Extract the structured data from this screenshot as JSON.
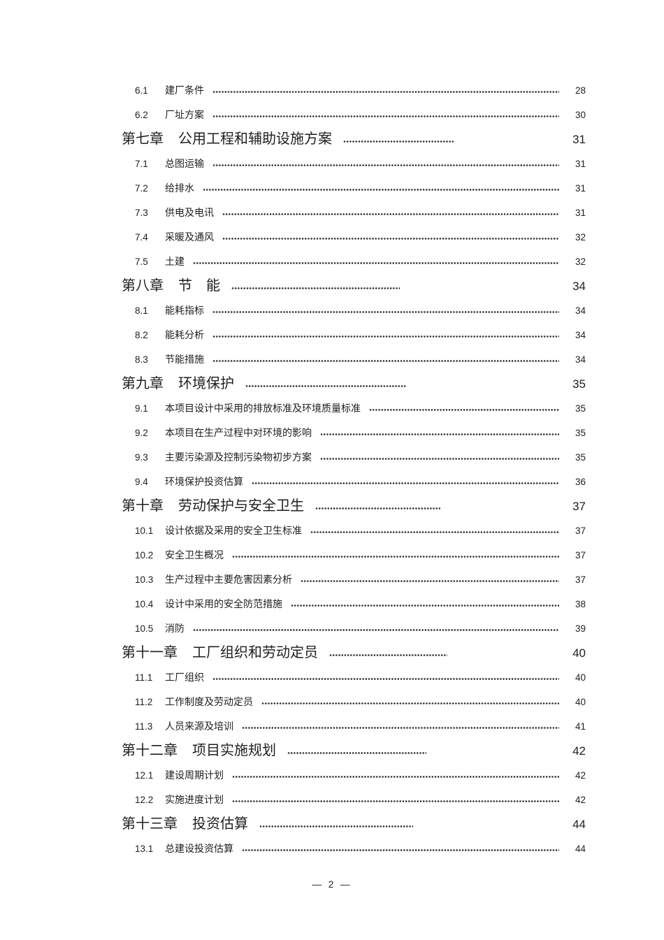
{
  "toc": {
    "entries": [
      {
        "type": "section",
        "num": "6.1",
        "title": "建厂条件",
        "page": "28"
      },
      {
        "type": "section",
        "num": "6.2",
        "title": "厂址方案",
        "page": "30"
      },
      {
        "type": "chapter",
        "num": "第七章",
        "title": "公用工程和辅助设施方案",
        "page": "31"
      },
      {
        "type": "section",
        "num": "7.1",
        "title": "总图运输",
        "page": "31"
      },
      {
        "type": "section",
        "num": "7.2",
        "title": "给排水",
        "page": "31"
      },
      {
        "type": "section",
        "num": "7.3",
        "title": "供电及电讯",
        "page": "31"
      },
      {
        "type": "section",
        "num": "7.4",
        "title": "采暖及通风",
        "page": "32"
      },
      {
        "type": "section",
        "num": "7.5",
        "title": "土建",
        "page": "32"
      },
      {
        "type": "chapter",
        "num": "第八章",
        "title": "节　能",
        "page": "34"
      },
      {
        "type": "section",
        "num": "8.1",
        "title": "能耗指标",
        "page": "34"
      },
      {
        "type": "section",
        "num": "8.2",
        "title": "能耗分析",
        "page": "34"
      },
      {
        "type": "section",
        "num": "8.3",
        "title": "节能措施",
        "page": "34"
      },
      {
        "type": "chapter",
        "num": "第九章",
        "title": "环境保护",
        "page": "35"
      },
      {
        "type": "section",
        "num": "9.1",
        "title": "本项目设计中采用的排放标准及环境质量标准",
        "page": "35"
      },
      {
        "type": "section",
        "num": "9.2",
        "title": "本项目在生产过程中对环境的影响",
        "page": "35"
      },
      {
        "type": "section",
        "num": "9.3",
        "title": "主要污染源及控制污染物初步方案",
        "page": "35"
      },
      {
        "type": "section",
        "num": "9.4",
        "title": "环境保护投资估算",
        "page": "36"
      },
      {
        "type": "chapter",
        "num": "第十章",
        "title": "劳动保护与安全卫生",
        "page": "37"
      },
      {
        "type": "section",
        "num": "10.1",
        "title": "设计依据及采用的安全卫生标准",
        "page": "37"
      },
      {
        "type": "section",
        "num": "10.2",
        "title": "安全卫生概况",
        "page": "37"
      },
      {
        "type": "section",
        "num": "10.3",
        "title": "生产过程中主要危害因素分析",
        "page": "37"
      },
      {
        "type": "section",
        "num": "10.4",
        "title": "设计中采用的安全防范措施",
        "page": "38"
      },
      {
        "type": "section",
        "num": "10.5",
        "title": "消防",
        "page": "39"
      },
      {
        "type": "chapter",
        "num": "第十一章",
        "title": "工厂组织和劳动定员",
        "page": "40"
      },
      {
        "type": "section",
        "num": "11.1",
        "title": "工厂组织",
        "page": "40"
      },
      {
        "type": "section",
        "num": "11.2",
        "title": "工作制度及劳动定员",
        "page": "40"
      },
      {
        "type": "section",
        "num": "11.3",
        "title": "人员来源及培训",
        "page": "41"
      },
      {
        "type": "chapter",
        "num": "第十二章",
        "title": "项目实施规划",
        "page": "42"
      },
      {
        "type": "section",
        "num": "12.1",
        "title": "建设周期计划",
        "page": "42"
      },
      {
        "type": "section",
        "num": "12.2",
        "title": "实施进度计划",
        "page": "42"
      },
      {
        "type": "chapter",
        "num": "第十三章",
        "title": "投资估算",
        "page": "44"
      },
      {
        "type": "section",
        "num": "13.1",
        "title": "总建设投资估算",
        "page": "44"
      }
    ]
  },
  "footer": {
    "text": "— 2 —"
  }
}
